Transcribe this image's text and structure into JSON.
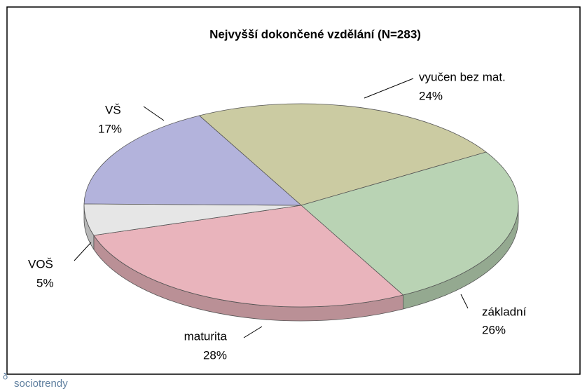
{
  "chart_data": {
    "type": "pie",
    "title": "Nejvyšší dokončené vzdělání (N=283)",
    "categories": [
      "vyučen bez mat.",
      "základní",
      "maturita",
      "VOŠ",
      "VŠ"
    ],
    "values": [
      24,
      26,
      28,
      5,
      17
    ],
    "value_labels": [
      "24%",
      "26%",
      "28%",
      "5%",
      "17%"
    ],
    "colors": [
      "#cbcba2",
      "#b9d3b4",
      "#e9b4bc",
      "#e6e6e6",
      "#b3b3dc"
    ],
    "three_d": true
  },
  "logo": "sociotrendy"
}
